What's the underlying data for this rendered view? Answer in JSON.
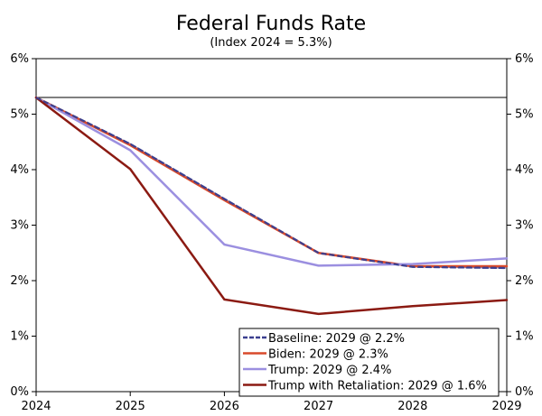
{
  "chart_data": {
    "type": "line",
    "title": "Federal Funds Rate",
    "subtitle": "(Index 2024 = 5.3%)",
    "x": [
      2024,
      2025,
      2026,
      2027,
      2028,
      2029
    ],
    "x_tick_labels": [
      "2024",
      "2025",
      "2026",
      "2027",
      "2028",
      "2029"
    ],
    "ylim": [
      0,
      6
    ],
    "y_tick_labels": [
      "0%",
      "1%",
      "2%",
      "3%",
      "4%",
      "5%",
      "6%"
    ],
    "y_ticks": [
      0,
      1,
      2,
      3,
      4,
      5,
      6
    ],
    "reference_line": 5.3,
    "legend_position": "bottom-right",
    "series": [
      {
        "name": "Baseline: 2029 @ 2.2%",
        "color": "#3b3f8f",
        "dash": "dashed",
        "values": [
          5.3,
          4.46,
          3.47,
          2.5,
          2.25,
          2.23
        ]
      },
      {
        "name": "Biden: 2029 @ 2.3%",
        "color": "#d94a2b",
        "dash": "solid",
        "values": [
          5.3,
          4.44,
          3.45,
          2.5,
          2.26,
          2.26
        ]
      },
      {
        "name": "Trump: 2029 @ 2.4%",
        "color": "#9b8fe0",
        "dash": "solid",
        "values": [
          5.3,
          4.35,
          2.65,
          2.27,
          2.3,
          2.4
        ]
      },
      {
        "name": "Trump with Retaliation: 2029 @ 1.6%",
        "color": "#8b1a12",
        "dash": "solid",
        "values": [
          5.3,
          4.01,
          1.66,
          1.4,
          1.54,
          1.65
        ]
      }
    ]
  }
}
